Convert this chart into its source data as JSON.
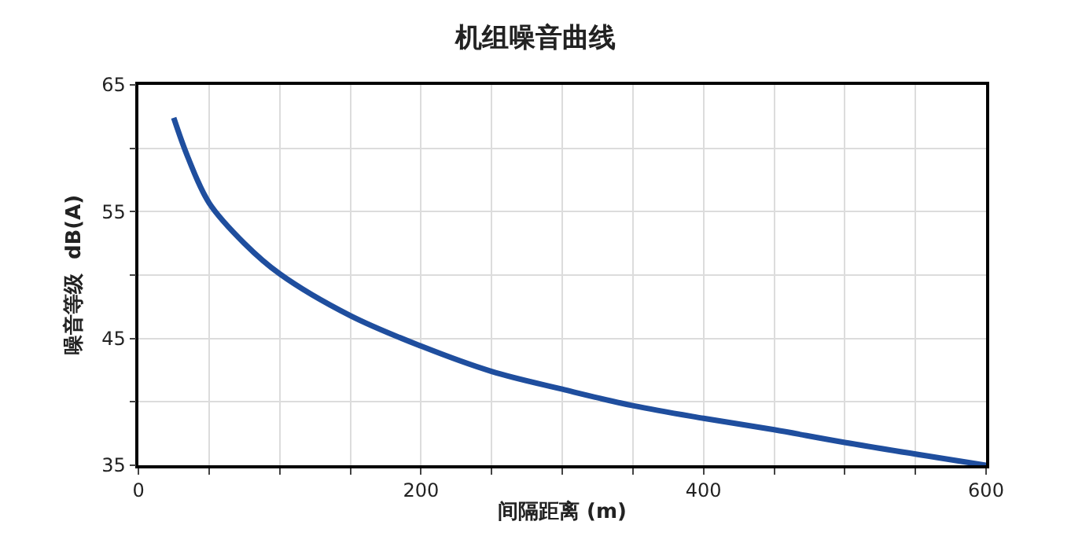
{
  "chart_data": {
    "type": "line",
    "title": "机组噪音曲线",
    "xlabel": "间隔距离 (m)",
    "ylabel": "噪音等级  dB(A)",
    "series": [
      {
        "color": "#1f4e9e",
        "x": [
          25,
          35,
          50,
          75,
          100,
          150,
          200,
          250,
          300,
          350,
          400,
          450,
          500,
          600
        ],
        "values": [
          62.4,
          59.3,
          55.7,
          52.5,
          50.1,
          46.8,
          44.4,
          42.4,
          41.0,
          39.7,
          38.7,
          37.8,
          36.8,
          35.0
        ]
      }
    ],
    "xlim": [
      0,
      600
    ],
    "xticks": [
      0,
      {
        "value": 50,
        "label": null
      },
      {
        "value": 100,
        "label": null
      },
      {
        "value": 150,
        "label": null
      },
      200,
      {
        "value": 250,
        "label": null
      },
      {
        "value": 300,
        "label": null
      },
      {
        "value": 350,
        "label": null
      },
      400,
      {
        "value": 450,
        "label": null
      },
      {
        "value": 500,
        "label": null
      },
      {
        "value": 550,
        "label": null
      },
      600
    ],
    "ylim": [
      35,
      65
    ],
    "yticks": [
      35,
      {
        "value": 40,
        "label": null
      },
      45,
      {
        "value": 50,
        "label": null
      },
      55,
      {
        "value": 60,
        "label": null
      },
      65
    ],
    "grid": true,
    "legend": false,
    "marker": "none",
    "line_style": "solid"
  }
}
